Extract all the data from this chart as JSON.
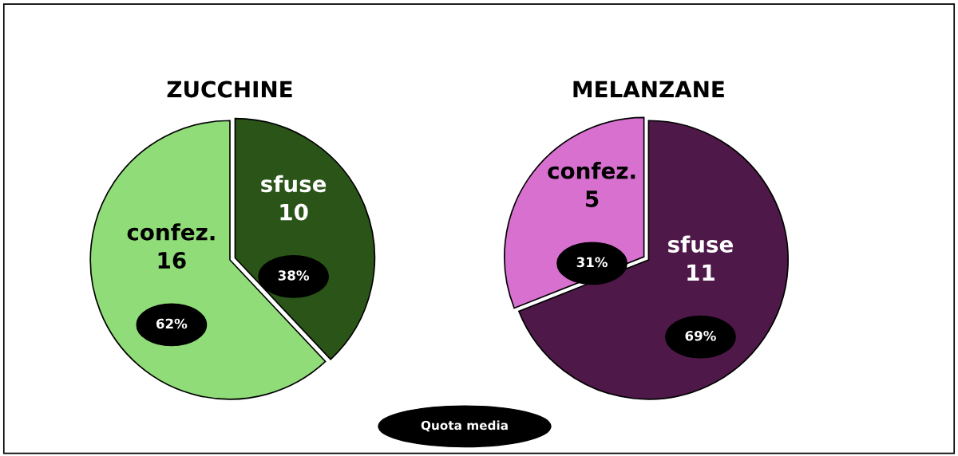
{
  "chart_data": [
    {
      "type": "pie",
      "title": "ZUCCHINE",
      "categories": [
        "sfuse\n10",
        "confez.\n16"
      ],
      "values": [
        38,
        62
      ],
      "colors": [
        "#2a5418",
        "#90dc78"
      ],
      "value_labels": [
        "38%",
        "62%"
      ],
      "annotations": [
        "Quota media"
      ]
    },
    {
      "type": "pie",
      "title": "MELANZANE",
      "categories": [
        "sfuse\n11",
        "confez.\n5"
      ],
      "values": [
        69,
        31
      ],
      "colors": [
        "#4e1848",
        "#d870d0"
      ],
      "value_labels": [
        "69%",
        "31%"
      ]
    }
  ]
}
